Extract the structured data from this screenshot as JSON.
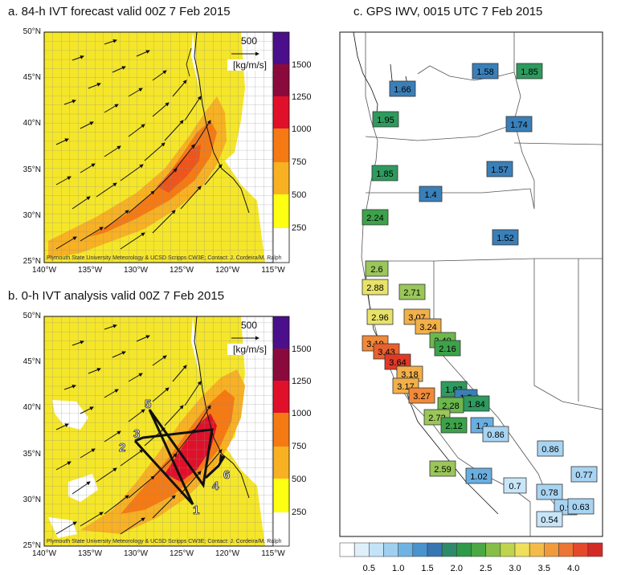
{
  "panel_a": {
    "title": "a. 84-h IVT forecast valid 00Z 7 Feb 2015",
    "ref_value": "500",
    "ref_unit": "[kg/m/s]",
    "credit": "Plymouth State University Meteorology & UCSD Scripps CW3E; Contact: J. Cordeira/M. Ralph",
    "colorbar_labels": [
      "1500",
      "1250",
      "1000",
      "750",
      "500",
      "250"
    ],
    "colors": [
      "#4b0f8c",
      "#8b0a3c",
      "#e0102a",
      "#f57a14",
      "#f7b123",
      "#ffff14",
      "#ffffff"
    ]
  },
  "panel_b": {
    "title": "b. 0-h IVT analysis valid 00Z 7 Feb 2015",
    "ref_value": "500",
    "ref_unit": "[kg/m/s]",
    "credit": "Plymouth State University Meteorology & UCSD Scripps CW3E; Contact: J. Cordeira/M. Ralph",
    "colorbar_labels": [
      "1500",
      "1250",
      "1000",
      "750",
      "500",
      "250"
    ],
    "flight_labels": [
      "1",
      "2",
      "3",
      "4",
      "5",
      "6"
    ]
  },
  "lat_labels": [
    "50°N",
    "45°N",
    "40°N",
    "35°N",
    "30°N",
    "25°N"
  ],
  "lon_labels": [
    "140°W",
    "135°W",
    "130°W",
    "125°W",
    "120°W",
    "115°W"
  ],
  "panel_c": {
    "title": "c. GPS IWV, 0015 UTC 7 Feb 2015",
    "stations": [
      {
        "v": "1.66",
        "c": "#3a7fb8"
      },
      {
        "v": "1.58",
        "c": "#3a7fb8"
      },
      {
        "v": "1.85",
        "c": "#2e9a5e"
      },
      {
        "v": "1.95",
        "c": "#2e9a5e"
      },
      {
        "v": "1.74",
        "c": "#3a7fb8"
      },
      {
        "v": "1.57",
        "c": "#3a7fb8"
      },
      {
        "v": "1.85",
        "c": "#2e9a5e"
      },
      {
        "v": "1.4",
        "c": "#3a7fb8"
      },
      {
        "v": "2.24",
        "c": "#3da24a"
      },
      {
        "v": "1.52",
        "c": "#3a7fb8"
      },
      {
        "v": "2.6",
        "c": "#9ac65a"
      },
      {
        "v": "2.88",
        "c": "#e9e26a"
      },
      {
        "v": "2.71",
        "c": "#9ac65a"
      },
      {
        "v": "2.96",
        "c": "#e9e26a"
      },
      {
        "v": "3.07",
        "c": "#f2b04a"
      },
      {
        "v": "3.24",
        "c": "#f2b04a"
      },
      {
        "v": "2.40",
        "c": "#6cb84e"
      },
      {
        "v": "3.19",
        "c": "#f08a3a"
      },
      {
        "v": "2.16",
        "c": "#3da24a"
      },
      {
        "v": "3.43",
        "c": "#e8602e"
      },
      {
        "v": "3.64",
        "c": "#e03a26"
      },
      {
        "v": "3.18",
        "c": "#f2b04a"
      },
      {
        "v": "3.17",
        "c": "#f2b04a"
      },
      {
        "v": "3.27",
        "c": "#f08a3a"
      },
      {
        "v": "1.87",
        "c": "#2e9a5e"
      },
      {
        "v": "1.5",
        "c": "#3a7fb8"
      },
      {
        "v": "2.28",
        "c": "#6cb84e"
      },
      {
        "v": "1.84",
        "c": "#2e9a5e"
      },
      {
        "v": "2.72",
        "c": "#9ac65a"
      },
      {
        "v": "2.12",
        "c": "#3da24a"
      },
      {
        "v": "1.2",
        "c": "#6aaee0"
      },
      {
        "v": "0.86",
        "c": "#a8d4f2"
      },
      {
        "v": "2.59",
        "c": "#9ac65a"
      },
      {
        "v": "0.86",
        "c": "#a8d4f2"
      },
      {
        "v": "1.02",
        "c": "#6aaee0"
      },
      {
        "v": "0.77",
        "c": "#a8d4f2"
      },
      {
        "v": "0.7",
        "c": "#c8e6f8"
      },
      {
        "v": "0.78",
        "c": "#a8d4f2"
      },
      {
        "v": "0.9",
        "c": "#a8d4f2"
      },
      {
        "v": "0.63",
        "c": "#a8d4f2"
      },
      {
        "v": "0.54",
        "c": "#c8e6f8"
      }
    ],
    "colorbar_labels": [
      "0.5",
      "1.0",
      "1.5",
      "2.0",
      "2.5",
      "3.0",
      "3.5",
      "4.0"
    ],
    "colorbar_colors": [
      "#ffffff",
      "#dff0fb",
      "#c3e3f7",
      "#9fd0f0",
      "#6fb3e3",
      "#4a93cf",
      "#3775b3",
      "#2f8a6a",
      "#2e9a4a",
      "#4aa845",
      "#86be48",
      "#c0d34c",
      "#eee05a",
      "#f3bb48",
      "#f19a3c",
      "#ec7434",
      "#e4492c",
      "#d42a26"
    ]
  }
}
